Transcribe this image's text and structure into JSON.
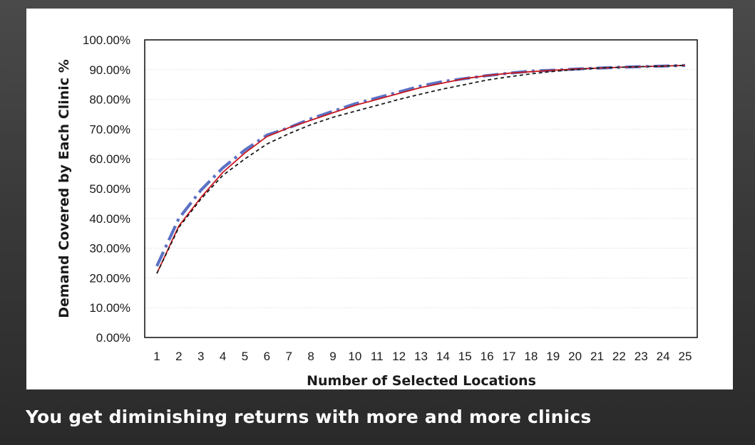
{
  "caption": "You get diminishing returns with more and more clinics",
  "chart_data": {
    "type": "line",
    "xlabel": "Number of Selected Locations",
    "ylabel": "Demand Covered by Each Clinic %",
    "x": [
      1,
      2,
      3,
      4,
      5,
      6,
      7,
      8,
      9,
      10,
      11,
      12,
      13,
      14,
      15,
      16,
      17,
      18,
      19,
      20,
      21,
      22,
      23,
      24,
      25
    ],
    "ylim": [
      0,
      100
    ],
    "yticks": [
      "0.00%",
      "10.00%",
      "20.00%",
      "30.00%",
      "40.00%",
      "50.00%",
      "60.00%",
      "70.00%",
      "80.00%",
      "90.00%",
      "100.00%"
    ],
    "grid": "horizontal",
    "legend": "none",
    "series": [
      {
        "style": "solid",
        "color": "#c8161d",
        "values": [
          21.5,
          37.5,
          47.0,
          55.5,
          62.0,
          67.5,
          70.5,
          73.0,
          75.5,
          78.0,
          80.0,
          82.0,
          84.0,
          85.5,
          87.0,
          88.0,
          88.8,
          89.3,
          89.8,
          90.2,
          90.5,
          90.8,
          91.0,
          91.2,
          91.4
        ]
      },
      {
        "style": "dashed",
        "color": "#1a1a1a",
        "values": [
          21.5,
          37.0,
          46.5,
          54.5,
          60.0,
          65.0,
          68.5,
          71.5,
          74.0,
          76.0,
          78.0,
          80.0,
          81.8,
          83.5,
          85.0,
          86.5,
          87.6,
          88.6,
          89.4,
          90.0,
          90.5,
          90.8,
          91.0,
          91.2,
          91.4
        ]
      },
      {
        "style": "dash-dot",
        "color": "#5b72c4",
        "values": [
          24.0,
          40.0,
          49.5,
          57.0,
          63.0,
          68.0,
          70.5,
          73.5,
          76.0,
          78.5,
          80.5,
          82.5,
          84.5,
          86.0,
          87.0,
          88.0,
          88.8,
          89.5,
          89.8,
          90.2,
          90.5,
          90.8,
          91.0,
          91.2,
          91.4
        ]
      }
    ]
  }
}
